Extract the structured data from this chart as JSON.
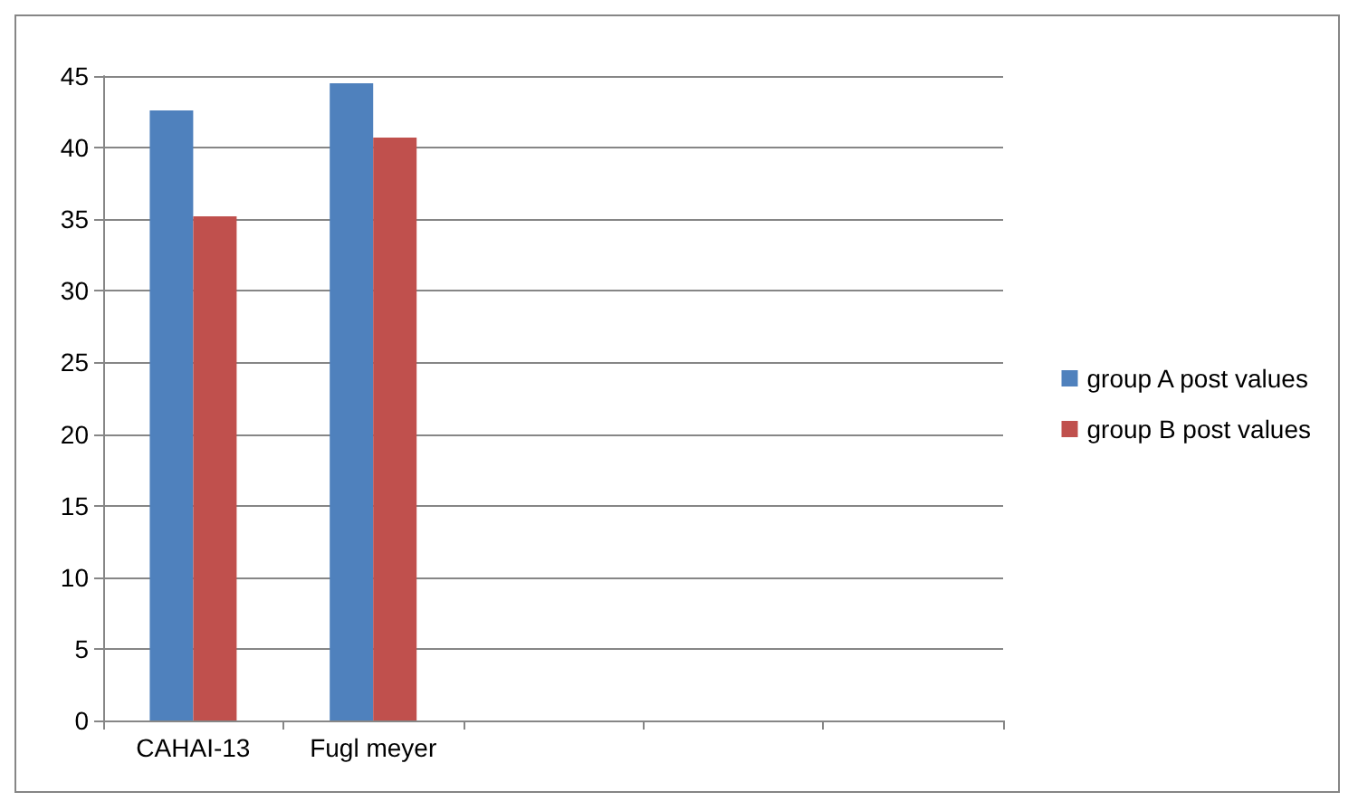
{
  "chart_data": {
    "type": "bar",
    "categories": [
      "CAHAI-13",
      "Fugl meyer",
      null,
      null,
      null
    ],
    "series": [
      {
        "name": "group A post values",
        "color": "#4f81bd",
        "values": [
          42.6,
          44.5,
          null,
          null,
          null
        ]
      },
      {
        "name": "group B post values",
        "color": "#c0504d",
        "values": [
          35.2,
          40.7,
          null,
          null,
          null
        ]
      }
    ],
    "ylim": [
      0,
      45
    ],
    "yticks": [
      0,
      5,
      10,
      15,
      20,
      25,
      30,
      35,
      40,
      45
    ],
    "grid": "y",
    "legend": "right"
  }
}
